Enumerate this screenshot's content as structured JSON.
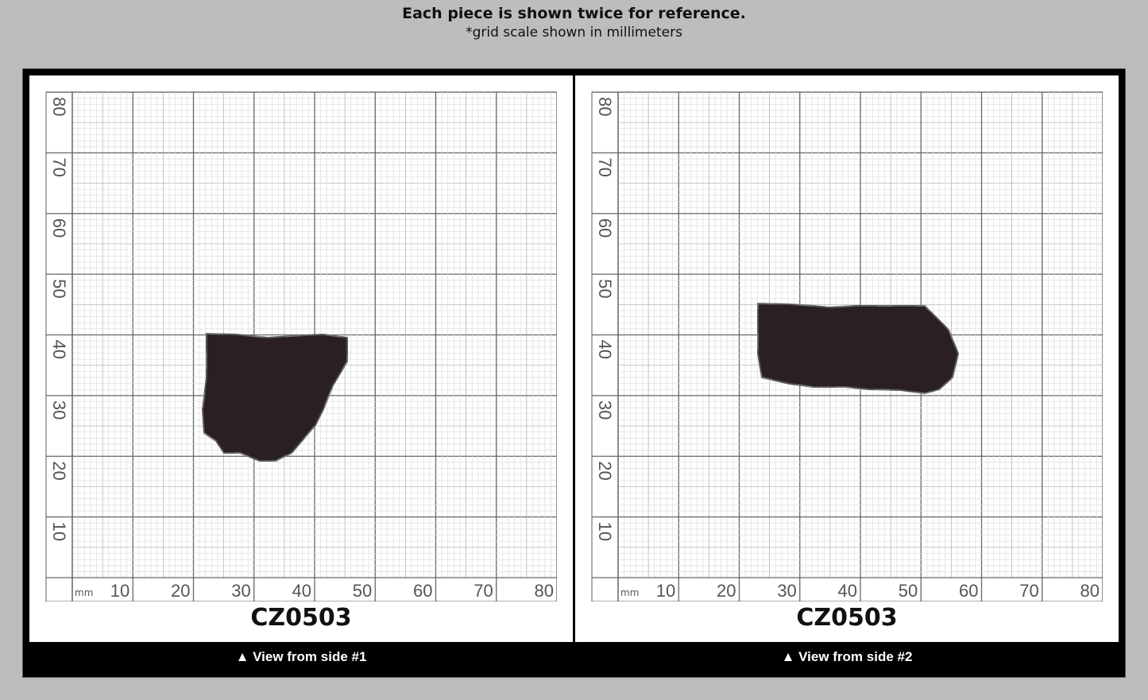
{
  "header": {
    "title": "Each piece is shown twice for reference.",
    "subtitle": "*grid scale shown in millimeters"
  },
  "grid": {
    "unit": "mm",
    "x_ticks": [
      10,
      20,
      30,
      40,
      50,
      60,
      70,
      80
    ],
    "y_ticks": [
      10,
      20,
      30,
      40,
      50,
      60,
      70,
      80
    ]
  },
  "panels": [
    {
      "code": "CZ0503",
      "caption": "▲ View from side #1"
    },
    {
      "code": "CZ0503",
      "caption": "▲ View from side #2"
    }
  ],
  "colors": {
    "background": "#bdbdbd",
    "frame": "#000000",
    "stone": "#2a2022"
  }
}
